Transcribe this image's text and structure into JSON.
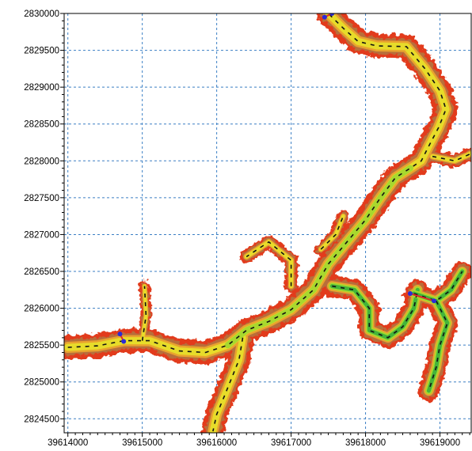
{
  "x_axis": {
    "ticks": [
      {
        "value": 39614000,
        "label": "39614000"
      },
      {
        "value": 39615000,
        "label": "39615000"
      },
      {
        "value": 39616000,
        "label": "39616000"
      },
      {
        "value": 39617000,
        "label": "39617000"
      },
      {
        "value": 39618000,
        "label": "39618000"
      },
      {
        "value": 39619000,
        "label": "39619000"
      }
    ],
    "range": [
      39613950,
      39619420
    ]
  },
  "y_axis": {
    "ticks": [
      {
        "value": 2830000,
        "label": "2830000"
      },
      {
        "value": 2829500,
        "label": "2829500"
      },
      {
        "value": 2829000,
        "label": "2829000"
      },
      {
        "value": 2828500,
        "label": "2828500"
      },
      {
        "value": 2828000,
        "label": "2828000"
      },
      {
        "value": 2827500,
        "label": "2827500"
      },
      {
        "value": 2827000,
        "label": "2827000"
      },
      {
        "value": 2826500,
        "label": "2826500"
      },
      {
        "value": 2826000,
        "label": "2826000"
      },
      {
        "value": 2825500,
        "label": "2825500"
      },
      {
        "value": 2825000,
        "label": "2825000"
      },
      {
        "value": 2824500,
        "label": "2824500"
      }
    ],
    "range": [
      2824310,
      2830000
    ]
  },
  "grid": true,
  "colors": {
    "frame": "#000000",
    "grid": "#3b7fc4",
    "bank_outer": "#e23b1c",
    "bank_inner": "#b86e3a",
    "slope_mid": "#e9a32e",
    "shallow": "#e7dc2a",
    "mid_depth": "#a8d82e",
    "deep": "#43b43a",
    "channel_line": "#111111",
    "boundary_marker": "#2b2bd6",
    "boundary_line": "#e02a2a"
  },
  "chart_data": {
    "type": "map",
    "x_axis_ticks": [
      39614000,
      39615000,
      39616000,
      39617000,
      39618000,
      39619000
    ],
    "y_axis_ticks": [
      2824500,
      2825000,
      2825500,
      2826000,
      2826500,
      2827000,
      2827500,
      2828000,
      2828500,
      2829000,
      2829500,
      2830000
    ],
    "x_range": [
      39613950,
      39619420
    ],
    "y_range": [
      2824310,
      2830000
    ],
    "grid": true,
    "features": {
      "main_reach": [
        [
          39614000,
          2825470
        ],
        [
          39614400,
          2825490
        ],
        [
          39614750,
          2825560
        ],
        [
          39615100,
          2825560
        ],
        [
          39615500,
          2825420
        ],
        [
          39615850,
          2825400
        ],
        [
          39616150,
          2825500
        ],
        [
          39616400,
          2825700
        ],
        [
          39616700,
          2825820
        ],
        [
          39617000,
          2825980
        ],
        [
          39617300,
          2826250
        ],
        [
          39617500,
          2826600
        ],
        [
          39617750,
          2826900
        ],
        [
          39618000,
          2827200
        ],
        [
          39618200,
          2827500
        ],
        [
          39618400,
          2827770
        ],
        [
          39618600,
          2827900
        ],
        [
          39618750,
          2828000
        ],
        [
          39618850,
          2828200
        ],
        [
          39618980,
          2828450
        ],
        [
          39619080,
          2828700
        ],
        [
          39619000,
          2828950
        ],
        [
          39618800,
          2829250
        ],
        [
          39618550,
          2829550
        ],
        [
          39618150,
          2829560
        ],
        [
          39617900,
          2829620
        ],
        [
          39617700,
          2829800
        ],
        [
          39617500,
          2830000
        ]
      ],
      "south_branch": [
        [
          39616350,
          2825600
        ],
        [
          39616300,
          2825300
        ],
        [
          39616200,
          2825050
        ],
        [
          39616100,
          2824800
        ],
        [
          39616000,
          2824560
        ],
        [
          39615950,
          2824330
        ]
      ],
      "southeast_arm_a": [
        [
          39617550,
          2826300
        ],
        [
          39617850,
          2826250
        ],
        [
          39618050,
          2826000
        ],
        [
          39618050,
          2825700
        ],
        [
          39618300,
          2825600
        ],
        [
          39618500,
          2825750
        ],
        [
          39618650,
          2826000
        ],
        [
          39618700,
          2826250
        ]
      ],
      "east_arm": [
        [
          39618650,
          2826200
        ],
        [
          39618950,
          2826100
        ],
        [
          39619150,
          2826250
        ],
        [
          39619300,
          2826500
        ]
      ],
      "east_branch": [
        [
          39618950,
          2826100
        ],
        [
          39619100,
          2825800
        ],
        [
          39619000,
          2825500
        ],
        [
          39618950,
          2825200
        ],
        [
          39618850,
          2824880
        ]
      ],
      "northeast_spur": [
        [
          39618900,
          2828060
        ],
        [
          39619200,
          2828000
        ],
        [
          39619420,
          2828100
        ]
      ],
      "west_spur": [
        [
          39615000,
          2825560
        ],
        [
          39615050,
          2825900
        ],
        [
          39615030,
          2826300
        ]
      ],
      "north_tributary": [
        [
          39617000,
          2826300
        ],
        [
          39617000,
          2826650
        ],
        [
          39616700,
          2826900
        ],
        [
          39616400,
          2826700
        ]
      ],
      "upper_tributary": [
        [
          39617400,
          2826800
        ],
        [
          39617600,
          2827000
        ],
        [
          39617700,
          2827250
        ]
      ]
    },
    "boundaries": [
      {
        "name": "",
        "points": [
          [
            39614700,
            2825650
          ],
          [
            39614750,
            2825550
          ]
        ]
      },
      {
        "name": "",
        "points": [
          [
            39617450,
            2829950
          ],
          [
            39617550,
            2830000
          ]
        ]
      },
      {
        "name": "",
        "points": [
          [
            39618600,
            2826200
          ],
          [
            39618920,
            2826100
          ]
        ]
      }
    ]
  }
}
